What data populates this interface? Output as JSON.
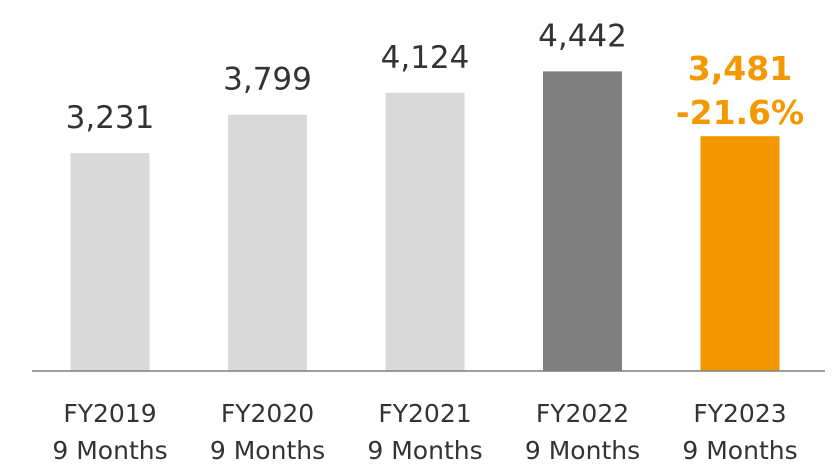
{
  "chart_data": {
    "type": "bar",
    "categories": [
      [
        "FY2019",
        "9 Months"
      ],
      [
        "FY2020",
        "9 Months"
      ],
      [
        "FY2021",
        "9 Months"
      ],
      [
        "FY2022",
        "9 Months"
      ],
      [
        "FY2023",
        "9 Months"
      ]
    ],
    "values": [
      3231,
      3799,
      4124,
      4442,
      3481
    ],
    "value_labels": [
      "3,231",
      "3,799",
      "4,124",
      "4,442",
      "3,481"
    ],
    "change_label": "-21.6%",
    "highlight_index": 4,
    "ylim": [
      0,
      5500
    ],
    "grid": false,
    "legend": "none",
    "title": "",
    "xlabel": "",
    "ylabel": "",
    "colors": {
      "default": "#d9d9d9",
      "previous": "#7f7f7f",
      "highlight": "#f39800",
      "axis": "#7f7f7f",
      "text": "#333333"
    }
  }
}
